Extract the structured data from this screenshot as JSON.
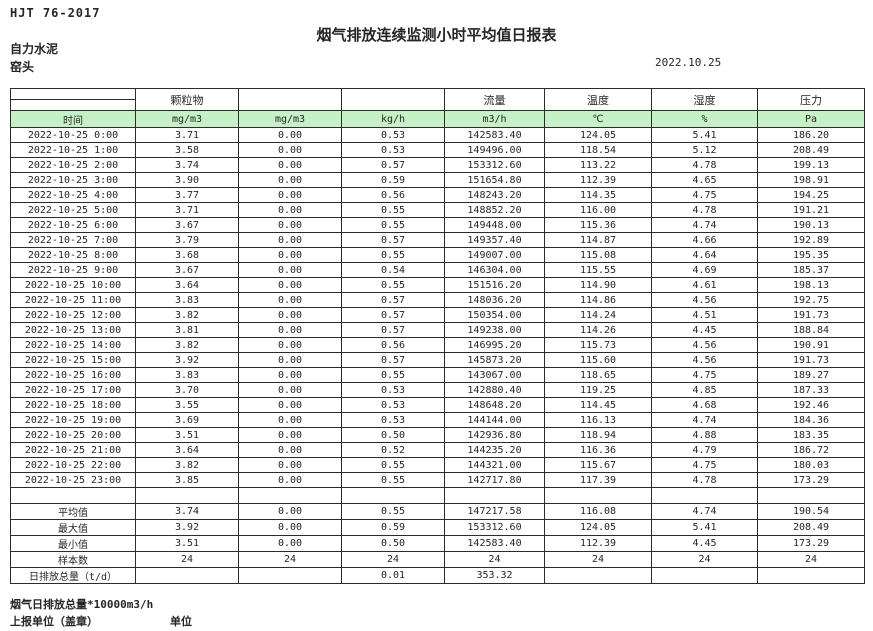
{
  "header": {
    "standard_code": "HJT 76-2017",
    "title": "烟气排放连续监测小时平均值日报表",
    "company": "自力水泥",
    "station": "窑头",
    "date": "2022.10.25"
  },
  "table": {
    "time_label": "时间",
    "groups": {
      "particulate": "颗粒物",
      "flow": "流量",
      "temperature": "温度",
      "humidity": "湿度",
      "pressure": "压力"
    },
    "units": [
      "mg/m3",
      "mg/m3",
      "kg/h",
      "m3/h",
      "℃",
      "%",
      "Pa"
    ],
    "rows": [
      {
        "time": "2022-10-25 0:00",
        "values": [
          "3.71",
          "0.00",
          "0.53",
          "142583.40",
          "124.05",
          "5.41",
          "186.20"
        ]
      },
      {
        "time": "2022-10-25 1:00",
        "values": [
          "3.58",
          "0.00",
          "0.53",
          "149496.00",
          "118.54",
          "5.12",
          "208.49"
        ]
      },
      {
        "time": "2022-10-25 2:00",
        "values": [
          "3.74",
          "0.00",
          "0.57",
          "153312.60",
          "113.22",
          "4.78",
          "199.13"
        ]
      },
      {
        "time": "2022-10-25 3:00",
        "values": [
          "3.90",
          "0.00",
          "0.59",
          "151654.80",
          "112.39",
          "4.65",
          "198.91"
        ]
      },
      {
        "time": "2022-10-25 4:00",
        "values": [
          "3.77",
          "0.00",
          "0.56",
          "148243.20",
          "114.35",
          "4.75",
          "194.25"
        ]
      },
      {
        "time": "2022-10-25 5:00",
        "values": [
          "3.71",
          "0.00",
          "0.55",
          "148852.20",
          "116.00",
          "4.78",
          "191.21"
        ]
      },
      {
        "time": "2022-10-25 6:00",
        "values": [
          "3.67",
          "0.00",
          "0.55",
          "149448.00",
          "115.36",
          "4.74",
          "190.13"
        ]
      },
      {
        "time": "2022-10-25 7:00",
        "values": [
          "3.79",
          "0.00",
          "0.57",
          "149357.40",
          "114.87",
          "4.66",
          "192.89"
        ]
      },
      {
        "time": "2022-10-25 8:00",
        "values": [
          "3.68",
          "0.00",
          "0.55",
          "149007.00",
          "115.08",
          "4.64",
          "195.35"
        ]
      },
      {
        "time": "2022-10-25 9:00",
        "values": [
          "3.67",
          "0.00",
          "0.54",
          "146304.00",
          "115.55",
          "4.69",
          "185.37"
        ]
      },
      {
        "time": "2022-10-25 10:00",
        "values": [
          "3.64",
          "0.00",
          "0.55",
          "151516.20",
          "114.90",
          "4.61",
          "198.13"
        ]
      },
      {
        "time": "2022-10-25 11:00",
        "values": [
          "3.83",
          "0.00",
          "0.57",
          "148036.20",
          "114.86",
          "4.56",
          "192.75"
        ]
      },
      {
        "time": "2022-10-25 12:00",
        "values": [
          "3.82",
          "0.00",
          "0.57",
          "150354.00",
          "114.24",
          "4.51",
          "191.73"
        ]
      },
      {
        "time": "2022-10-25 13:00",
        "values": [
          "3.81",
          "0.00",
          "0.57",
          "149238.00",
          "114.26",
          "4.45",
          "188.84"
        ]
      },
      {
        "time": "2022-10-25 14:00",
        "values": [
          "3.82",
          "0.00",
          "0.56",
          "146995.20",
          "115.73",
          "4.56",
          "190.91"
        ]
      },
      {
        "time": "2022-10-25 15:00",
        "values": [
          "3.92",
          "0.00",
          "0.57",
          "145873.20",
          "115.60",
          "4.56",
          "191.73"
        ]
      },
      {
        "time": "2022-10-25 16:00",
        "values": [
          "3.83",
          "0.00",
          "0.55",
          "143067.00",
          "118.65",
          "4.75",
          "189.27"
        ]
      },
      {
        "time": "2022-10-25 17:00",
        "values": [
          "3.70",
          "0.00",
          "0.53",
          "142880.40",
          "119.25",
          "4.85",
          "187.33"
        ]
      },
      {
        "time": "2022-10-25 18:00",
        "values": [
          "3.55",
          "0.00",
          "0.53",
          "148648.20",
          "114.45",
          "4.68",
          "192.46"
        ]
      },
      {
        "time": "2022-10-25 19:00",
        "values": [
          "3.69",
          "0.00",
          "0.53",
          "144144.00",
          "116.13",
          "4.74",
          "184.36"
        ]
      },
      {
        "time": "2022-10-25 20:00",
        "values": [
          "3.51",
          "0.00",
          "0.50",
          "142936.80",
          "118.94",
          "4.88",
          "183.35"
        ]
      },
      {
        "time": "2022-10-25 21:00",
        "values": [
          "3.64",
          "0.00",
          "0.52",
          "144235.20",
          "116.36",
          "4.79",
          "186.72"
        ]
      },
      {
        "time": "2022-10-25 22:00",
        "values": [
          "3.82",
          "0.00",
          "0.55",
          "144321.00",
          "115.67",
          "4.75",
          "180.03"
        ]
      },
      {
        "time": "2022-10-25 23:00",
        "values": [
          "3.85",
          "0.00",
          "0.55",
          "142717.80",
          "117.39",
          "4.78",
          "173.29"
        ]
      }
    ],
    "summary": [
      {
        "label": "平均值",
        "values": [
          "3.74",
          "0.00",
          "0.55",
          "147217.58",
          "116.08",
          "4.74",
          "190.54"
        ]
      },
      {
        "label": "最大值",
        "values": [
          "3.92",
          "0.00",
          "0.59",
          "153312.60",
          "124.05",
          "5.41",
          "208.49"
        ]
      },
      {
        "label": "最小值",
        "values": [
          "3.51",
          "0.00",
          "0.50",
          "142583.40",
          "112.39",
          "4.45",
          "173.29"
        ]
      },
      {
        "label": "样本数",
        "values": [
          "24",
          "24",
          "24",
          "24",
          "24",
          "24",
          "24"
        ]
      },
      {
        "label": "日排放总量（t/d）",
        "values": [
          "",
          "",
          "0.01",
          "353.32",
          "",
          "",
          ""
        ]
      }
    ]
  },
  "footer": {
    "note": "烟气日排放总量*10000m3/h",
    "report_unit": "上报单位（盖章）",
    "unit_label": "单位"
  },
  "colors": {
    "units_row_green": "#C6F0C6",
    "border": "#2b2b2b"
  }
}
